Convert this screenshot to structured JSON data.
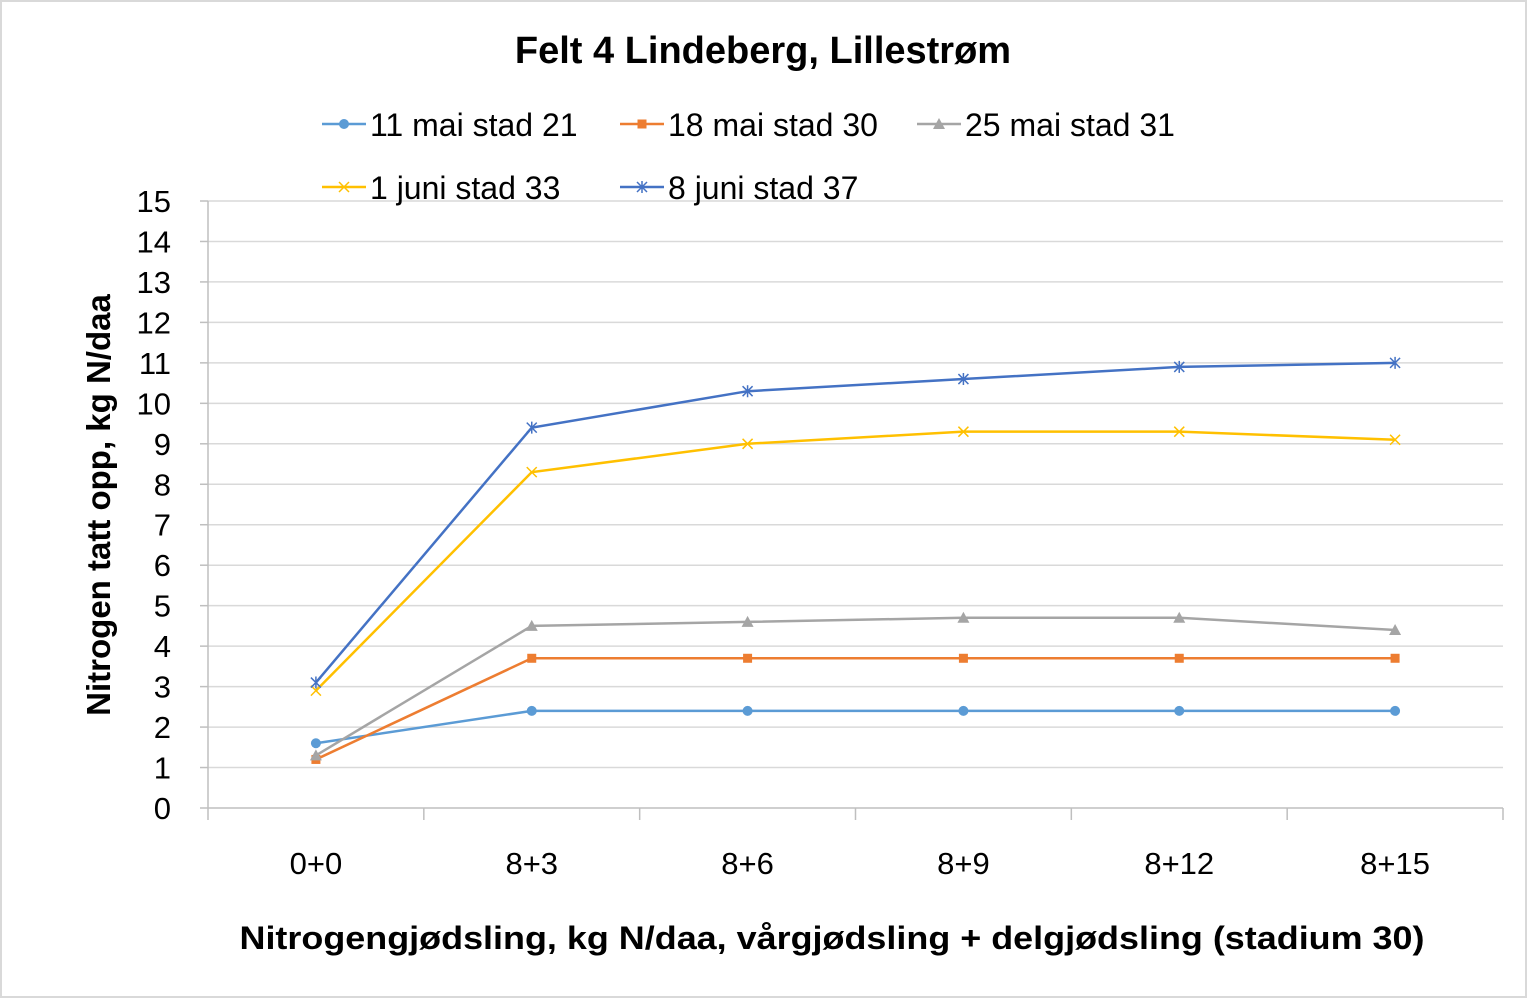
{
  "chart_data": {
    "type": "line",
    "title": "Felt 4 Lindeberg, Lillestrøm",
    "xlabel": "Nitrogengjødsling, kg N/daa, vårgjødsling + delgjødsling (stadium 30)",
    "ylabel": "Nitrogen tatt opp, kg N/daa",
    "ylim": [
      0,
      15
    ],
    "yticks": [
      "0",
      "1",
      "2",
      "3",
      "4",
      "5",
      "6",
      "7",
      "8",
      "9",
      "10",
      "11",
      "12",
      "13",
      "14",
      "15"
    ],
    "grid": true,
    "legend_position": "top",
    "categories": [
      "0+0",
      "8+3",
      "8+6",
      "8+9",
      "8+12",
      "8+15"
    ],
    "series": [
      {
        "name": "11 mai stad 21",
        "color": "#5B9BD5",
        "marker": "circle",
        "values": [
          1.6,
          2.4,
          2.4,
          2.4,
          2.4,
          2.4
        ]
      },
      {
        "name": "18 mai stad 30",
        "color": "#ED7D31",
        "marker": "square",
        "values": [
          1.2,
          3.7,
          3.7,
          3.7,
          3.7,
          3.7
        ]
      },
      {
        "name": "25 mai stad 31",
        "color": "#A5A5A5",
        "marker": "triangle",
        "values": [
          1.3,
          4.5,
          4.6,
          4.7,
          4.7,
          4.4
        ]
      },
      {
        "name": "1 juni stad 33",
        "color": "#FFC000",
        "marker": "x",
        "values": [
          2.9,
          8.3,
          9.0,
          9.3,
          9.3,
          9.1
        ]
      },
      {
        "name": "8 juni stad 37",
        "color": "#4472C4",
        "marker": "star",
        "values": [
          3.1,
          9.4,
          10.3,
          10.6,
          10.9,
          11.0
        ]
      }
    ]
  }
}
